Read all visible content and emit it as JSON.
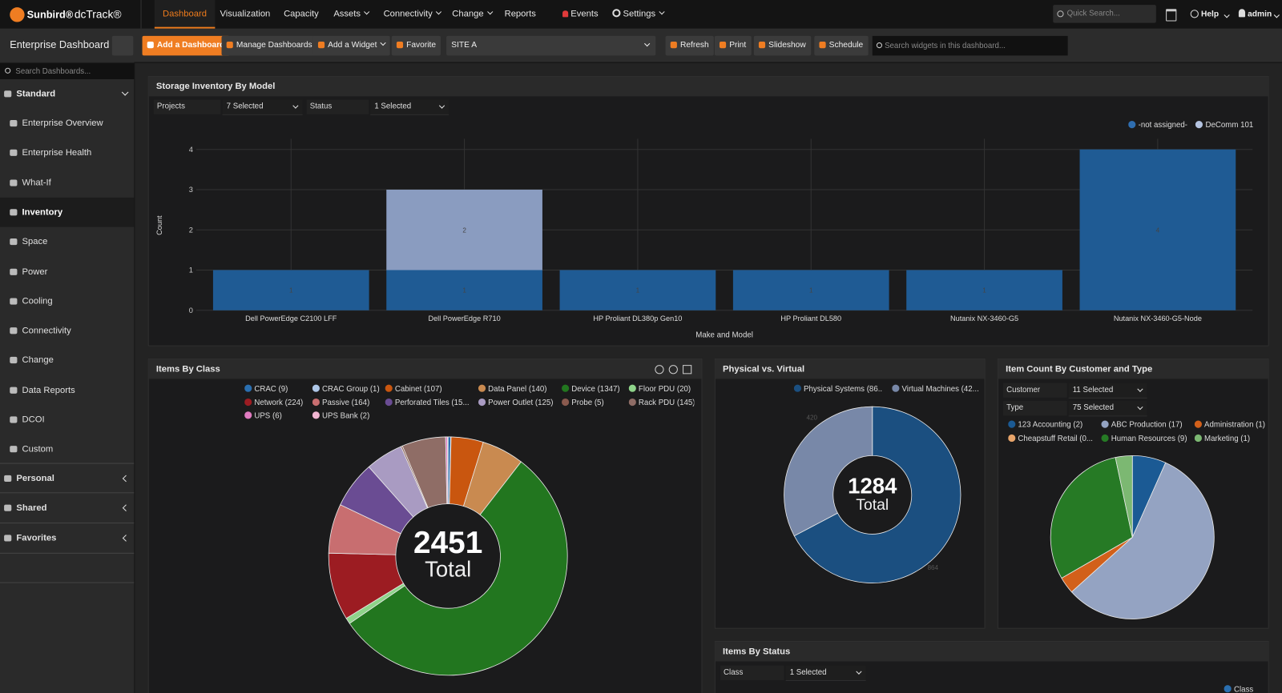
{
  "nav": {
    "brand": "Sunbird®",
    "product": "dcTrack®",
    "items": [
      {
        "label": "Dashboard",
        "active": true
      },
      {
        "label": "Visualization"
      },
      {
        "label": "Capacity"
      },
      {
        "label": "Assets",
        "dropdown": true
      },
      {
        "label": "Connectivity",
        "dropdown": true
      },
      {
        "label": "Change",
        "dropdown": true
      },
      {
        "label": "Reports"
      },
      {
        "label": "Events",
        "icon": "bell"
      },
      {
        "label": "Settings",
        "icon": "gear",
        "dropdown": true
      }
    ],
    "search_placeholder": "Quick Search...",
    "help": "Help",
    "user": "admin"
  },
  "toolbar": {
    "title": "Enterprise Dashboard",
    "buttons": [
      {
        "label": "Add a Dashboard",
        "primary": true
      },
      {
        "label": "Manage Dashboards"
      },
      {
        "label": "Add a Widget",
        "dropdown": true
      },
      {
        "label": "Favorite"
      }
    ],
    "site": "SITE A",
    "actions": [
      "Refresh",
      "Print",
      "Slideshow",
      "Schedule"
    ],
    "widget_search_placeholder": "Search widgets in this dashboard..."
  },
  "sidebar": {
    "search_placeholder": "Search Dashboards...",
    "section": "Standard",
    "items": [
      {
        "label": "Enterprise Overview"
      },
      {
        "label": "Enterprise Health"
      },
      {
        "label": "What-If"
      },
      {
        "label": "Inventory",
        "active": true
      },
      {
        "label": "Space"
      },
      {
        "label": "Power"
      },
      {
        "label": "Cooling"
      },
      {
        "label": "Connectivity"
      },
      {
        "label": "Change"
      },
      {
        "label": "Data Reports"
      },
      {
        "label": "DCOI"
      },
      {
        "label": "Custom"
      }
    ],
    "groups": [
      "Personal",
      "Shared",
      "Favorites"
    ]
  },
  "chart_data": [
    {
      "type": "bar",
      "stacked": true,
      "title": "Storage Inventory By Model",
      "filters": [
        {
          "label": "Projects",
          "value": "7 Selected"
        },
        {
          "label": "Status",
          "value": "1 Selected"
        }
      ],
      "categories": [
        "Dell PowerEdge C2100 LFF",
        "Dell PowerEdge R710",
        "HP Proliant DL380p Gen10",
        "HP Proliant DL580",
        "Nutanix NX-3460-G5",
        "Nutanix NX-3460-G5-Node"
      ],
      "series": [
        {
          "name": "-not assigned-",
          "color": "#1f5b94",
          "legend_color": "#2f6eb0",
          "values": [
            1,
            1,
            1,
            1,
            1,
            4
          ]
        },
        {
          "name": "DeComm 101",
          "color": "#8a9cc0",
          "legend_color": "#b4c3e0",
          "values": [
            null,
            2,
            null,
            null,
            null,
            null
          ]
        }
      ],
      "ylim": [
        0,
        4
      ],
      "yticks": [
        0,
        1,
        2,
        3,
        4
      ],
      "ylabel": "Count",
      "xlabel": "Make and Model",
      "grid": true,
      "legend": "top-right"
    },
    {
      "type": "donut",
      "title": "Items By Class",
      "total": 2451,
      "total_label": "Total",
      "series": [
        {
          "name": "CRAC (9)",
          "color": "#2a6fb0",
          "value": 9
        },
        {
          "name": "CRAC Group (1)",
          "color": "#aec7e8",
          "value": 1
        },
        {
          "name": "Cabinet (107)",
          "color": "#c9560f",
          "value": 107
        },
        {
          "name": "Data Panel (140)",
          "color": "#c98a50",
          "value": 140
        },
        {
          "name": "Device (1347)",
          "color": "#22761f",
          "value": 1347
        },
        {
          "name": "Floor PDU (20)",
          "color": "#8fd48a",
          "value": 20
        },
        {
          "name": "Network (224)",
          "color": "#9c1c22",
          "value": 224
        },
        {
          "name": "Passive (164)",
          "color": "#c86e70",
          "value": 164
        },
        {
          "name": "Perforated Tiles (15...",
          "color": "#6a4c93",
          "value": 156
        },
        {
          "name": "Power Outlet (125)",
          "color": "#a99bc2",
          "value": 125
        },
        {
          "name": "Probe (5)",
          "color": "#8a5a4e",
          "value": 5
        },
        {
          "name": "Rack PDU (145)",
          "color": "#8f6d66",
          "value": 145
        },
        {
          "name": "UPS (6)",
          "color": "#e07bc0",
          "value": 6
        },
        {
          "name": "UPS Bank (2)",
          "color": "#f2b6d2",
          "value": 2
        }
      ]
    },
    {
      "type": "donut",
      "title": "Physical vs. Virtual",
      "total": 1284,
      "total_label": "Total",
      "slice_labels": true,
      "series": [
        {
          "name": "Physical Systems (86...",
          "color": "#1b4f80",
          "value": 864
        },
        {
          "name": "Virtual Machines (42...",
          "color": "#7888a8",
          "value": 420
        }
      ]
    },
    {
      "type": "pie",
      "title": "Item Count By Customer and Type",
      "filters": [
        {
          "label": "Customer",
          "value": "11 Selected"
        },
        {
          "label": "Type",
          "value": "75 Selected"
        }
      ],
      "series": [
        {
          "name": "123 Accounting (2)",
          "color": "#1b5a94",
          "value": 2
        },
        {
          "name": "ABC Production (17)",
          "color": "#94a3c2",
          "value": 17
        },
        {
          "name": "Administration (1)",
          "color": "#d2601a",
          "value": 1
        },
        {
          "name": "Cheapstuff Retail (0...",
          "color": "#e7a46a",
          "value": 0
        },
        {
          "name": "Human Resources (9)",
          "color": "#267a25",
          "value": 9
        },
        {
          "name": "Marketing (1)",
          "color": "#7cb872",
          "value": 1
        }
      ]
    }
  ],
  "widgets": [
    {
      "title": "Items By Status",
      "filters": [
        {
          "label": "Class",
          "value": "1 Selected"
        }
      ],
      "legend": [
        {
          "name": "Class",
          "color": "#2a6fb0"
        }
      ]
    }
  ]
}
